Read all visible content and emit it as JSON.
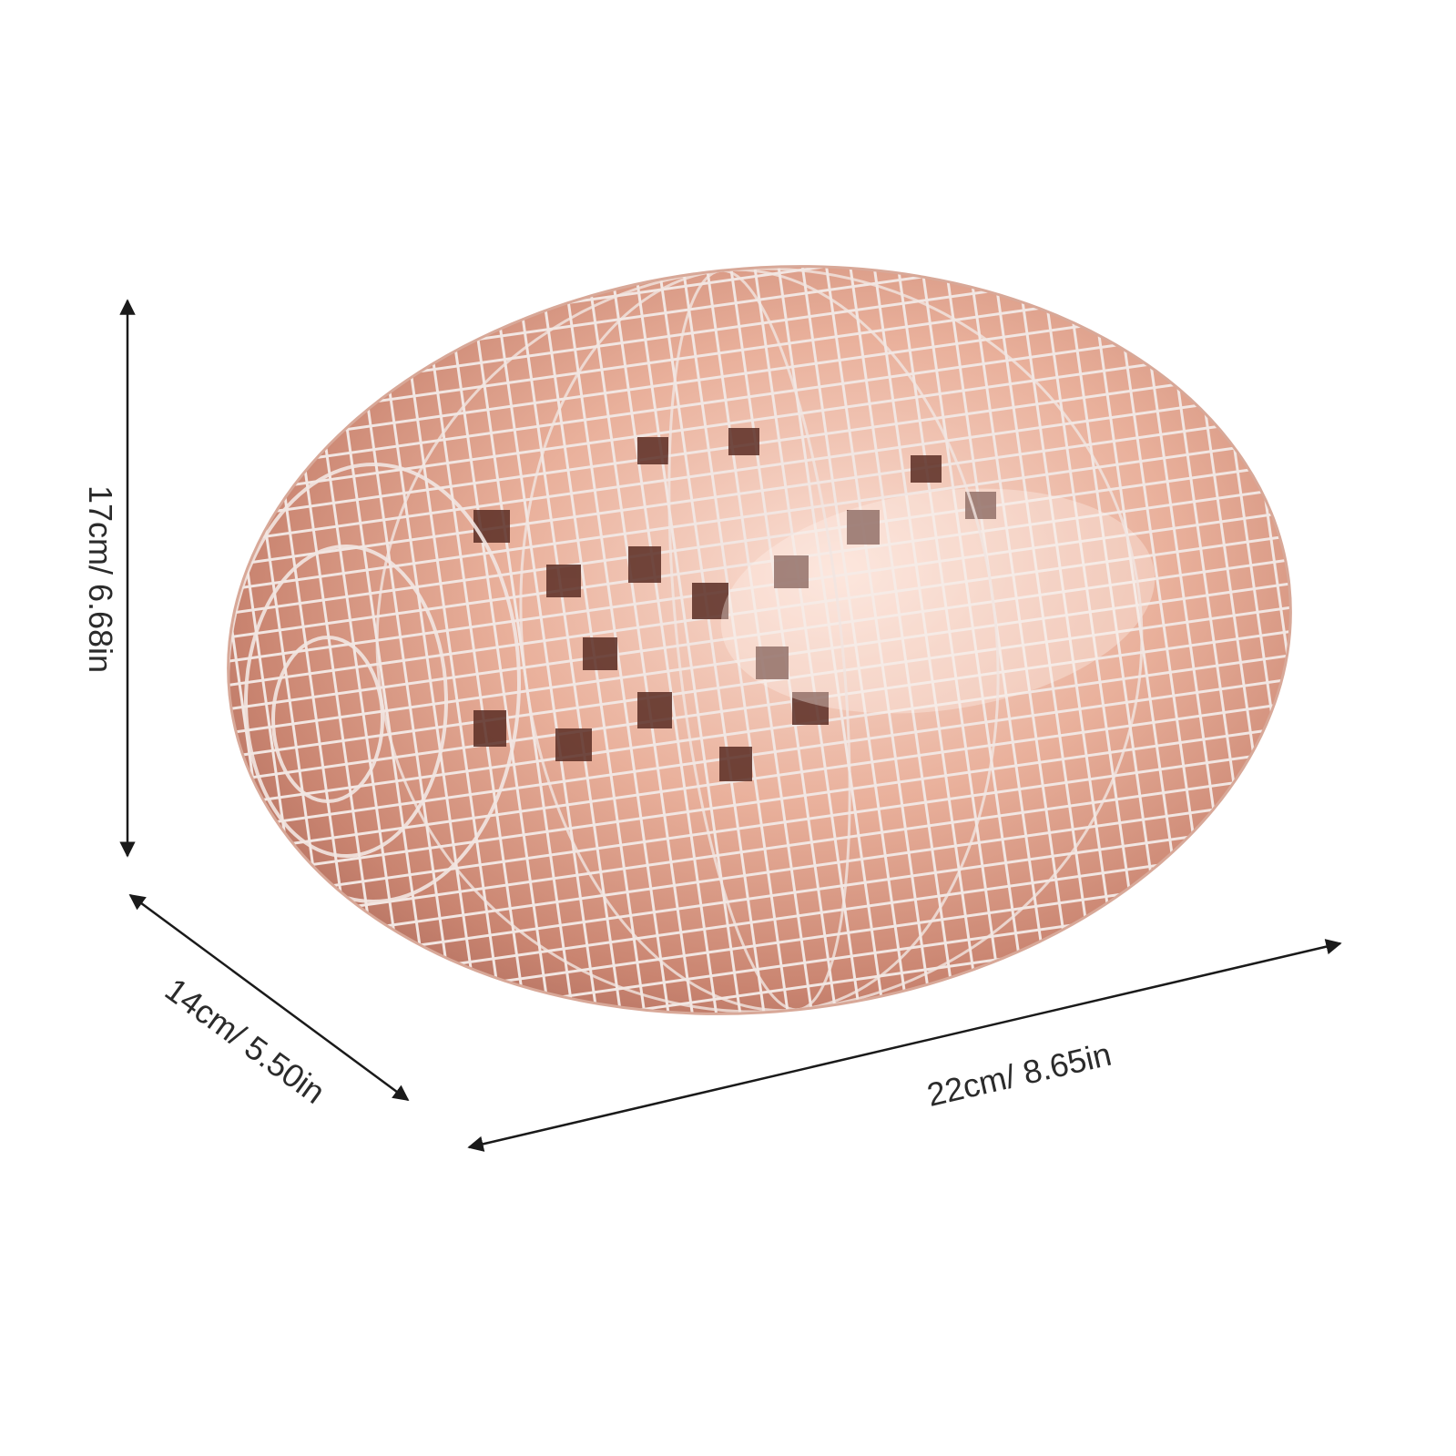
{
  "product": {
    "object": "mirror-egg",
    "colors": {
      "tile_light": "#f4cbbd",
      "tile_mid": "#d9957c",
      "tile_dark": "#5a2d24",
      "grout": "#f2e6e2",
      "highlight": "#fff3ee",
      "line": "#1a1a1a"
    }
  },
  "dimensions": {
    "height": {
      "label": "17cm/ 6.68in",
      "value_cm": 17,
      "value_in": 6.68
    },
    "depth": {
      "label": "14cm/ 5.50in",
      "value_cm": 14,
      "value_in": 5.5
    },
    "width": {
      "label": "22cm/ 8.65in",
      "value_cm": 22,
      "value_in": 8.65
    }
  }
}
